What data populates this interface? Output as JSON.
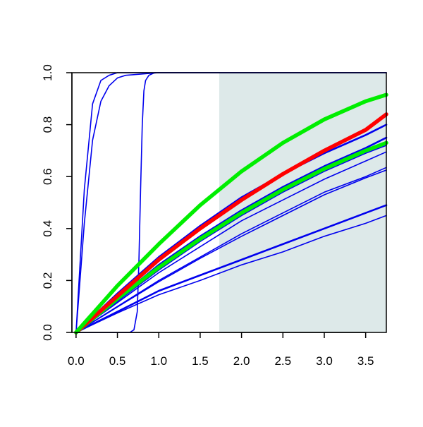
{
  "chart_data": {
    "type": "line",
    "title": "",
    "xlabel": "",
    "ylabel": "",
    "xlim": [
      -0.05,
      3.75
    ],
    "ylim": [
      0.0,
      1.0
    ],
    "x_ticks": [
      0.0,
      0.5,
      1.0,
      1.5,
      2.0,
      2.5,
      3.0,
      3.5
    ],
    "x_tick_labels": [
      "0.0",
      "0.5",
      "1.0",
      "1.5",
      "2.0",
      "2.5",
      "3.0",
      "3.5"
    ],
    "y_ticks": [
      0.0,
      0.2,
      0.4,
      0.6,
      0.8,
      1.0
    ],
    "y_tick_labels": [
      "0.0",
      "0.2",
      "0.4",
      "0.6",
      "0.8",
      "1.0"
    ],
    "grid": false,
    "legend": "none",
    "shaded_region": {
      "x_from": 1.73,
      "x_to": 3.75,
      "y_from": 0.0,
      "y_to": 1.0,
      "color": "#dde9e9"
    },
    "series": [
      {
        "color": "#0000ee",
        "width": "thin",
        "x": [
          0,
          0.1,
          0.2,
          0.3,
          0.4,
          0.5,
          1.0,
          3.75
        ],
        "y": [
          0,
          0.55,
          0.88,
          0.97,
          0.99,
          1.0,
          1.0,
          1.0
        ]
      },
      {
        "color": "#0000ee",
        "width": "thin",
        "x": [
          0,
          0.1,
          0.2,
          0.3,
          0.4,
          0.5,
          0.6,
          1.0,
          3.75
        ],
        "y": [
          0,
          0.42,
          0.74,
          0.89,
          0.95,
          0.98,
          0.99,
          1.0,
          1.0
        ]
      },
      {
        "color": "#0000ee",
        "width": "thin",
        "x": [
          0,
          0.65,
          0.7,
          0.74,
          0.76,
          0.78,
          0.8,
          0.82,
          0.84,
          0.88,
          0.95,
          3.75
        ],
        "y": [
          0,
          0,
          0.01,
          0.08,
          0.28,
          0.55,
          0.8,
          0.93,
          0.97,
          0.99,
          1.0,
          1.0
        ]
      },
      {
        "color": "#0000ee",
        "width": "medium",
        "x": [
          0,
          0.5,
          1.0,
          1.5,
          2.0,
          2.5,
          3.0,
          3.5,
          3.75
        ],
        "y": [
          0,
          0.15,
          0.29,
          0.41,
          0.52,
          0.61,
          0.69,
          0.76,
          0.8
        ]
      },
      {
        "color": "#0000ee",
        "width": "medium",
        "x": [
          0,
          0.5,
          1.0,
          1.5,
          2.0,
          2.5,
          3.0,
          3.5,
          3.75
        ],
        "y": [
          0,
          0.13,
          0.26,
          0.37,
          0.47,
          0.56,
          0.64,
          0.71,
          0.75
        ]
      },
      {
        "color": "#0000ee",
        "width": "thin",
        "x": [
          0,
          0.5,
          1.0,
          1.5,
          2.0,
          2.5,
          3.0,
          3.5,
          3.75
        ],
        "y": [
          0,
          0.12,
          0.24,
          0.35,
          0.45,
          0.54,
          0.62,
          0.69,
          0.72
        ]
      },
      {
        "color": "#0000ee",
        "width": "thin",
        "x": [
          0,
          0.5,
          1.0,
          1.5,
          2.0,
          2.5,
          3.0,
          3.5,
          3.75
        ],
        "y": [
          0,
          0.115,
          0.23,
          0.33,
          0.43,
          0.51,
          0.59,
          0.66,
          0.695
        ]
      },
      {
        "color": "#0000ee",
        "width": "thin",
        "x": [
          0,
          0.5,
          1.0,
          1.5,
          2.0,
          2.5,
          3.0,
          3.5,
          3.75
        ],
        "y": [
          0,
          0.1,
          0.2,
          0.29,
          0.38,
          0.46,
          0.54,
          0.6,
          0.635
        ]
      },
      {
        "color": "#0000ee",
        "width": "thin",
        "x": [
          0,
          0.5,
          1.0,
          1.5,
          2.0,
          2.5,
          3.0,
          3.5,
          3.75
        ],
        "y": [
          0,
          0.098,
          0.195,
          0.285,
          0.37,
          0.45,
          0.53,
          0.595,
          0.625
        ]
      },
      {
        "color": "#0000ee",
        "width": "medium",
        "x": [
          0,
          0.5,
          1.0,
          1.5,
          2.0,
          2.5,
          3.0,
          3.5,
          3.75
        ],
        "y": [
          0,
          0.08,
          0.16,
          0.22,
          0.28,
          0.34,
          0.4,
          0.46,
          0.49
        ]
      },
      {
        "color": "#0000ee",
        "width": "thin",
        "x": [
          0,
          0.5,
          1.0,
          1.5,
          2.0,
          2.5,
          3.0,
          3.5,
          3.75
        ],
        "y": [
          0,
          0.075,
          0.145,
          0.2,
          0.26,
          0.31,
          0.37,
          0.42,
          0.45
        ]
      },
      {
        "color": "#00ee00",
        "width": "thick",
        "x": [
          0,
          0.5,
          1.0,
          1.5,
          2.0,
          2.5,
          3.0,
          3.5,
          3.75
        ],
        "y": [
          0,
          0.13,
          0.25,
          0.36,
          0.46,
          0.55,
          0.63,
          0.7,
          0.73
        ]
      },
      {
        "color": "#ff0000",
        "width": "thick",
        "x": [
          0,
          0.5,
          1.0,
          1.5,
          2.0,
          2.5,
          3.0,
          3.5,
          3.75
        ],
        "y": [
          0,
          0.14,
          0.28,
          0.4,
          0.51,
          0.61,
          0.7,
          0.78,
          0.84
        ]
      },
      {
        "color": "#00ee00",
        "width": "thick",
        "x": [
          0,
          0.5,
          1.0,
          1.5,
          2.0,
          2.5,
          3.0,
          3.5,
          3.75
        ],
        "y": [
          0,
          0.18,
          0.34,
          0.49,
          0.62,
          0.73,
          0.82,
          0.89,
          0.915
        ]
      }
    ]
  }
}
